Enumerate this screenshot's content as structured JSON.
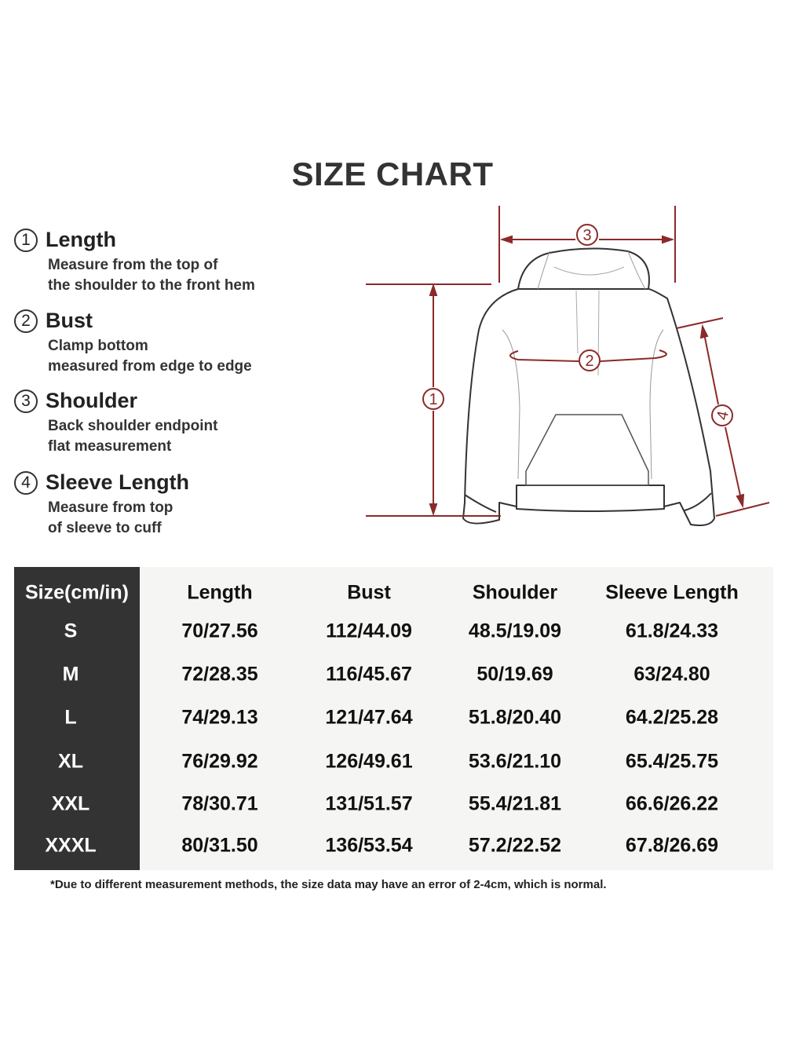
{
  "title": "SIZE CHART",
  "legend": [
    {
      "num": "1",
      "label": "Length",
      "lines": [
        "Measure from the top of",
        "the shoulder to the front hem"
      ]
    },
    {
      "num": "2",
      "label": "Bust",
      "lines": [
        "Clamp bottom",
        "measured from edge to edge"
      ]
    },
    {
      "num": "3",
      "label": "Shoulder",
      "lines": [
        "Back shoulder endpoint",
        "flat measurement"
      ]
    },
    {
      "num": "4",
      "label": "Sleeve Length",
      "lines": [
        "Measure from top",
        "of sleeve to cuff"
      ]
    }
  ],
  "diagram": {
    "markers": [
      "1",
      "2",
      "3",
      "4"
    ],
    "accent_color": "#8b2a2a"
  },
  "table": {
    "headers": [
      "Size(cm/in)",
      "Length",
      "Bust",
      "Shoulder",
      "Sleeve Length"
    ],
    "rows": [
      [
        "S",
        "70/27.56",
        "112/44.09",
        "48.5/19.09",
        "61.8/24.33"
      ],
      [
        "M",
        "72/28.35",
        "116/45.67",
        "50/19.69",
        "63/24.80"
      ],
      [
        "L",
        "74/29.13",
        "121/47.64",
        "51.8/20.40",
        "64.2/25.28"
      ],
      [
        "XL",
        "76/29.92",
        "126/49.61",
        "53.6/21.10",
        "65.4/25.75"
      ],
      [
        "XXL",
        "78/30.71",
        "131/51.57",
        "55.4/21.81",
        "66.6/26.22"
      ],
      [
        "XXXL",
        "80/31.50",
        "136/53.54",
        "57.2/22.52",
        "67.8/26.69"
      ]
    ]
  },
  "footnote": "*Due to different measurement methods, the size data may have an error of 2-4cm, which is normal."
}
